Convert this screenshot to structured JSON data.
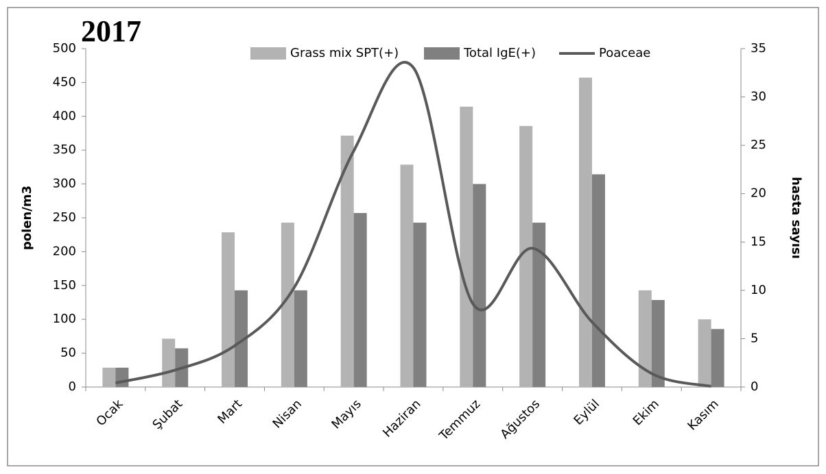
{
  "chart_data": {
    "type": "bar-line",
    "title": "2017",
    "ylabel": "polen/m3",
    "y2label": "hasta sayısı",
    "categories": [
      "Ocak",
      "Şubat",
      "Mart",
      "Nisan",
      "Mayıs",
      "Haziran",
      "Temmuz",
      "Ağustos",
      "Eylül",
      "Ekim",
      "Kasım"
    ],
    "ylim": [
      0,
      500
    ],
    "yticks": [
      0,
      50,
      100,
      150,
      200,
      250,
      300,
      350,
      400,
      450,
      500
    ],
    "y2lim": [
      0,
      35
    ],
    "y2ticks": [
      0,
      5,
      10,
      15,
      20,
      25,
      30,
      35
    ],
    "legend": "top",
    "series": [
      {
        "name": "Grass mix SPT(+)",
        "type": "bar",
        "axis": "y2",
        "color": "#b3b3b3",
        "values": [
          2,
          5,
          16,
          17,
          26,
          23,
          29,
          27,
          32,
          10,
          7
        ]
      },
      {
        "name": "Total IgE(+)",
        "type": "bar",
        "axis": "y2",
        "color": "#808080",
        "values": [
          2,
          4,
          10,
          10,
          18,
          17,
          21,
          17,
          22,
          9,
          6
        ]
      },
      {
        "name": "Poaceae",
        "type": "line",
        "axis": "y",
        "color": "#595959",
        "values": [
          6,
          25,
          61,
          147,
          349,
          472,
          123,
          205,
          96,
          20,
          1
        ]
      }
    ]
  }
}
